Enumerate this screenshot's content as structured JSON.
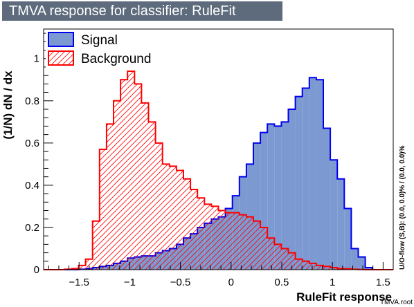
{
  "title": "TMVA response for classifier: RuleFit",
  "footer": "TMVA.root",
  "colors": {
    "title_bg": "#5d6b7d",
    "signal_fill": "#7d99d1",
    "signal_line": "#0000ee",
    "background_line": "#ff0000",
    "background_hatch": "#ff0000"
  },
  "chart_data": {
    "type": "histogram",
    "xlabel": "RuleFit response",
    "ylabel": "(1/N) dN / dx",
    "side_label": "U/O-flow (S,B): (0.0, 0.0)% / (0.0, 0.0)%",
    "xlim": [
      -1.85,
      1.6
    ],
    "ylim": [
      0,
      1.14
    ],
    "x_ticks": [
      -1.5,
      -1,
      -0.5,
      0,
      0.5,
      1,
      1.5
    ],
    "x_tick_labels": [
      "−1.5",
      "−1",
      "−0.5",
      "0",
      "0.5",
      "1",
      "1.5"
    ],
    "y_ticks": [
      0,
      0.2,
      0.4,
      0.6,
      0.8,
      1
    ],
    "y_tick_labels": [
      "0",
      "0.2",
      "0.4",
      "0.6",
      "0.8",
      "1"
    ],
    "bin_start": -1.85,
    "bin_width": 0.069,
    "grid": false,
    "legend_position": "top-left",
    "series": [
      {
        "name": "Signal",
        "style": "filled",
        "values": [
          0,
          0,
          0,
          0,
          0,
          0.002,
          0.005,
          0.01,
          0.015,
          0.02,
          0.03,
          0.04,
          0.055,
          0.06,
          0.065,
          0.065,
          0.08,
          0.09,
          0.1,
          0.12,
          0.15,
          0.17,
          0.2,
          0.22,
          0.24,
          0.25,
          0.29,
          0.35,
          0.44,
          0.5,
          0.6,
          0.65,
          0.69,
          0.68,
          0.7,
          0.76,
          0.82,
          0.86,
          0.91,
          0.9,
          0.67,
          0.52,
          0.43,
          0.29,
          0.1,
          0.06,
          0.01,
          0,
          0,
          0
        ]
      },
      {
        "name": "Background",
        "style": "hatched",
        "values": [
          0,
          0,
          0,
          0.002,
          0.005,
          0.02,
          0.05,
          0.23,
          0.57,
          0.69,
          0.8,
          0.9,
          0.94,
          0.88,
          0.79,
          0.7,
          0.6,
          0.5,
          0.49,
          0.47,
          0.43,
          0.38,
          0.34,
          0.31,
          0.3,
          0.28,
          0.27,
          0.27,
          0.26,
          0.25,
          0.23,
          0.2,
          0.15,
          0.12,
          0.1,
          0.08,
          0.05,
          0.04,
          0.03,
          0.02,
          0.015,
          0.01,
          0.005,
          0.004,
          0.002,
          0.001,
          0,
          0,
          0,
          0
        ]
      }
    ]
  }
}
